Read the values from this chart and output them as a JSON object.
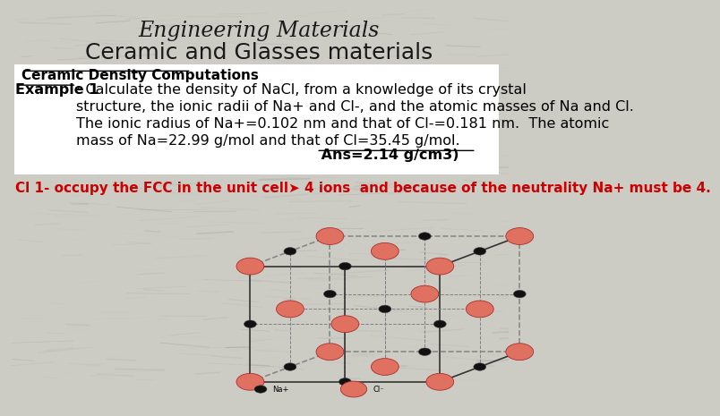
{
  "title_line1": "Engineering Materials",
  "title_line2": "Ceramic and Glasses materials",
  "subtitle": "Ceramic Density Computations",
  "example_label": "Example 1",
  "example_body": ": Calculate the density of NaCl, from a knowledge of its crystal\nstructure, the ionic radii of Na+ and Cl-, and the atomic masses of Na and Cl.\nThe ionic radius of Na+=0.102 nm and that of Cl-=0.181 nm.  The atomic\nmass of Na=22.99 g/mol and that of Cl=35.45 g/mol.",
  "answer_text": " Ans=2.14 g/cm3)",
  "cl_text": "Cl 1- occupy the FCC in the unit cell➤ 4 ions  and because of the neutrality Na+ must be 4.",
  "bg_color": "#cccbc4",
  "text_box_color": "#ffffff",
  "title_color": "#1a1a1a",
  "example_color": "#000000",
  "cl_text_color": "#cc0000",
  "answer_color": "#000000",
  "subtitle_color": "#000000",
  "cl_ion_color": "#e07060",
  "cl_ion_edge": "#aa3030",
  "na_ion_color": "#111111",
  "na_ion_edge": "#444444"
}
